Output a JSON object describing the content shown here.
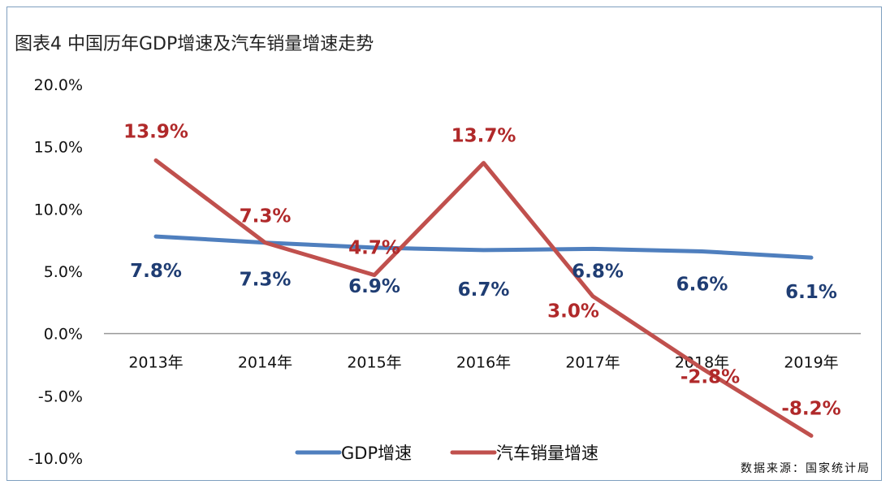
{
  "chart_data": {
    "type": "line",
    "title": "图表4  中国历年GDP增速及汽车销量增速走势",
    "categories": [
      "2013年",
      "2014年",
      "2015年",
      "2016年",
      "2017年",
      "2018年",
      "2019年"
    ],
    "yticks": [
      "20.0%",
      "15.0%",
      "10.0%",
      "5.0%",
      "0.0%",
      "-5.0%",
      "-10.0%"
    ],
    "ylim": [
      -10,
      20
    ],
    "grid": false,
    "legend_position": "bottom",
    "series": [
      {
        "name": "GDP增速",
        "color": "#4f7fbe",
        "label_color": "#1f3d73",
        "values": [
          7.8,
          7.3,
          6.9,
          6.7,
          6.8,
          6.6,
          6.1
        ],
        "labels": [
          "7.8%",
          "7.3%",
          "6.9%",
          "6.7%",
          "6.8%",
          "6.6%",
          "6.1%"
        ]
      },
      {
        "name": "汽车销量增速",
        "color": "#c0504d",
        "label_color": "#b0292a",
        "values": [
          13.9,
          7.3,
          4.7,
          13.7,
          3.0,
          -2.8,
          -8.2
        ],
        "labels": [
          "13.9%",
          "7.3%",
          "4.7%",
          "13.7%",
          "3.0%",
          "-2.8%",
          "-8.2%"
        ]
      }
    ]
  },
  "source": "数据来源：国家统计局"
}
